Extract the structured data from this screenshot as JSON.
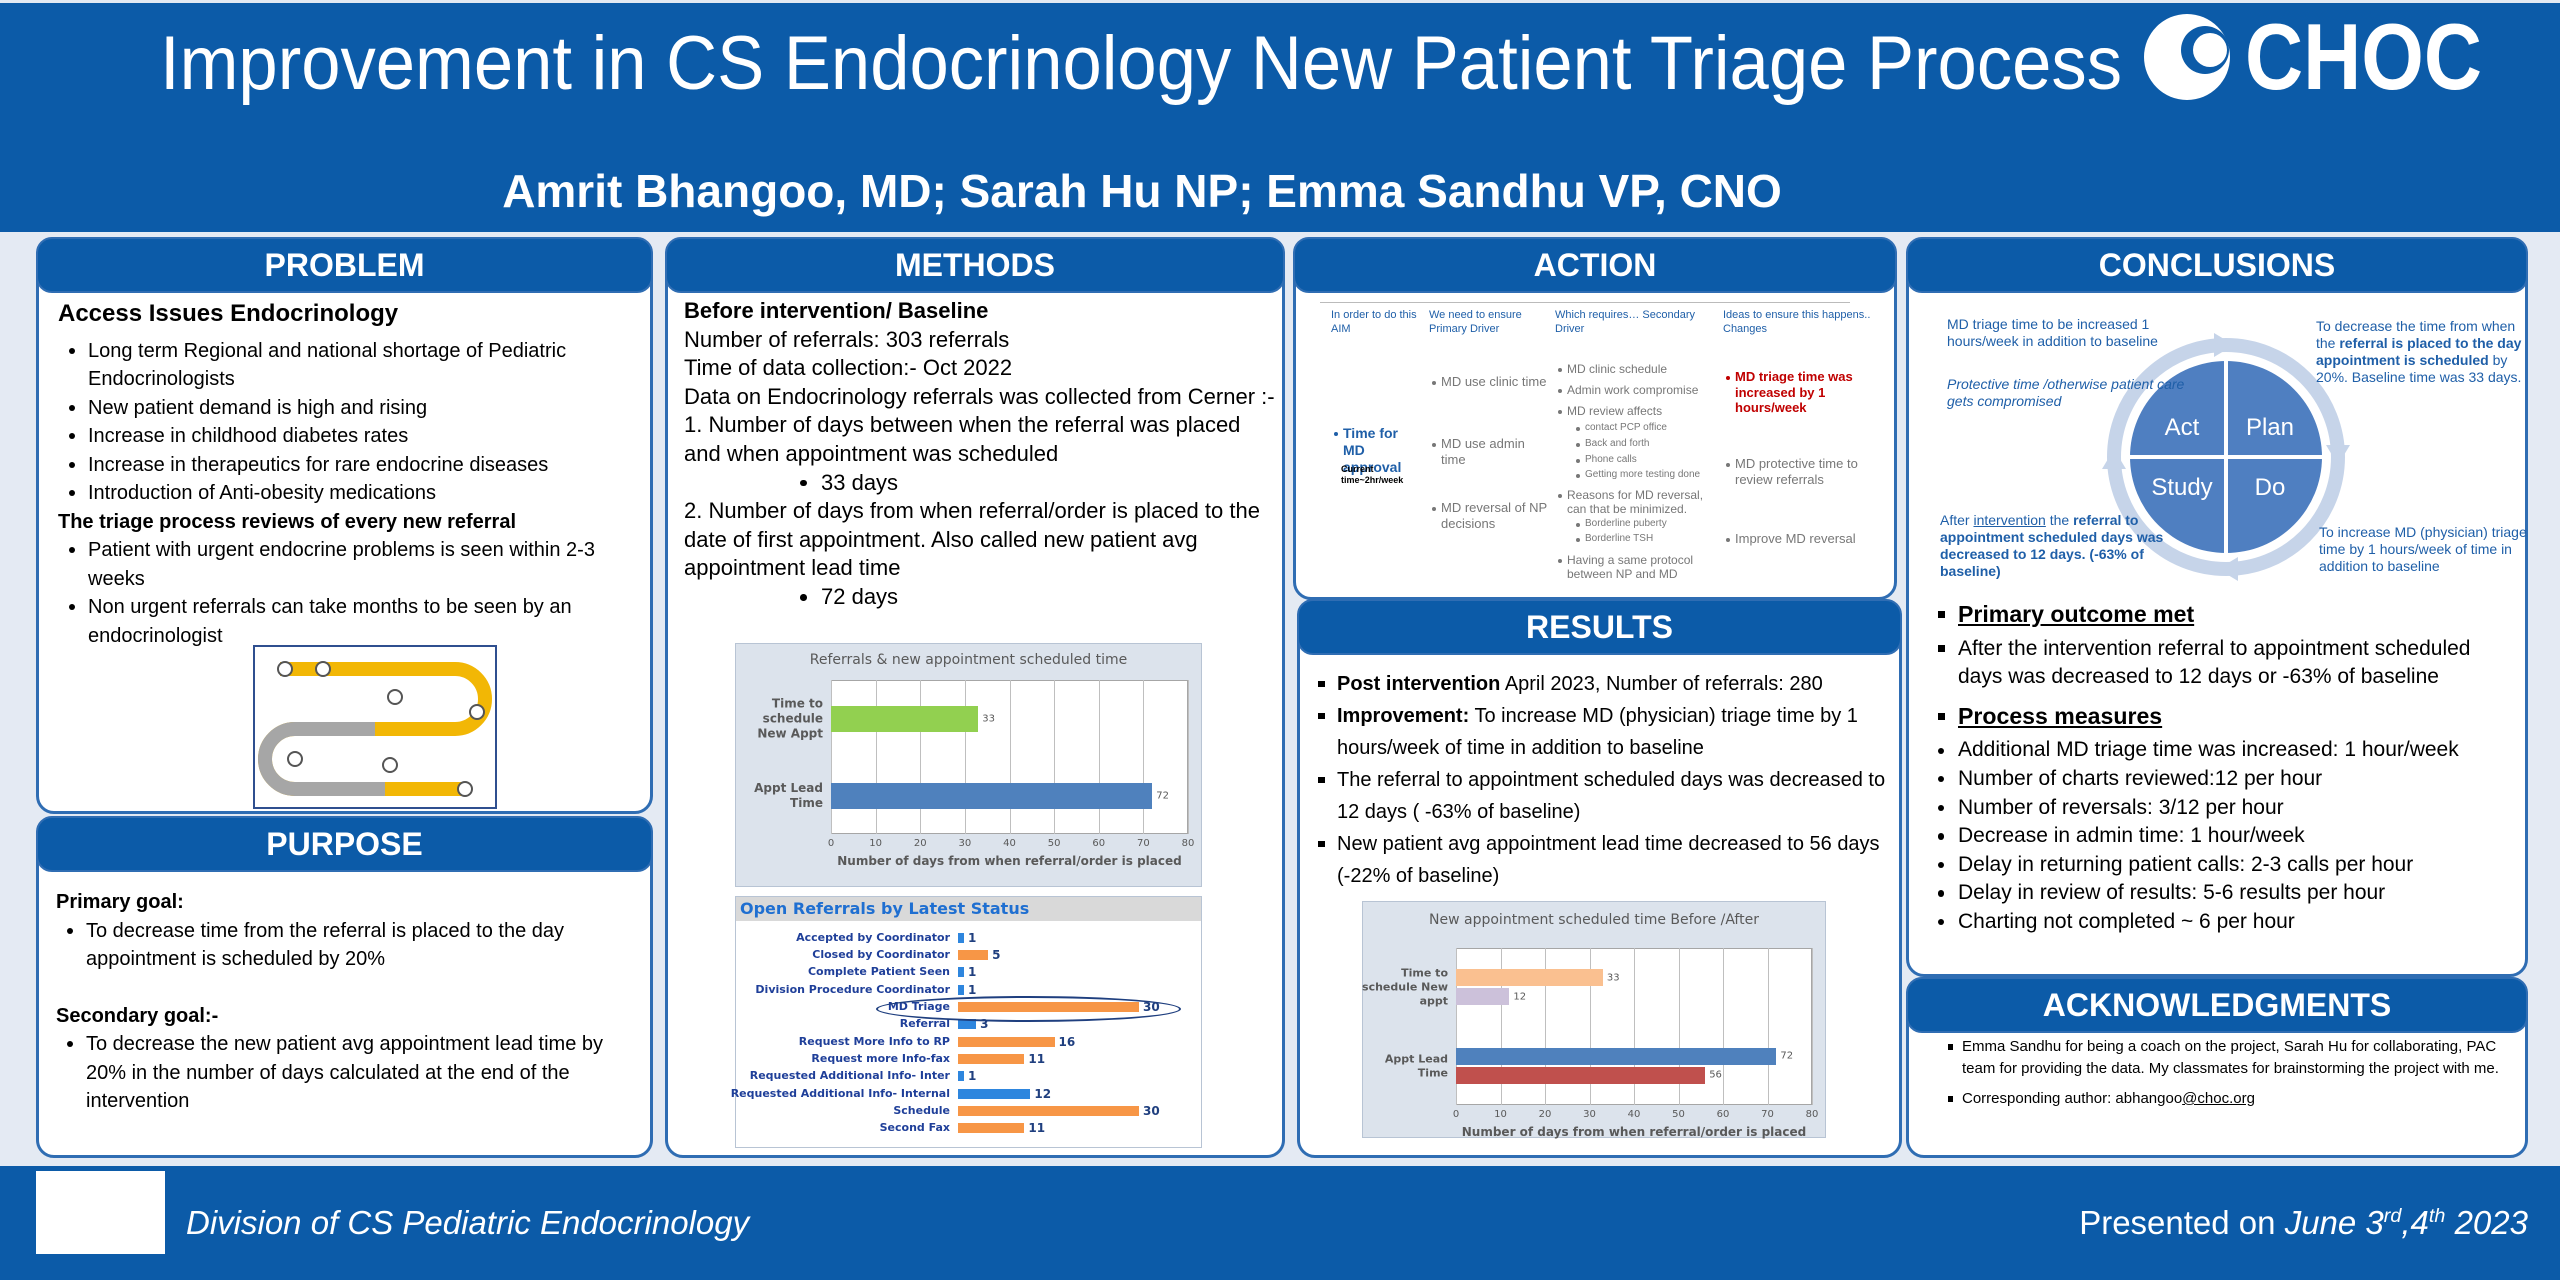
{
  "header": {
    "title": "Improvement in CS Endocrinology New Patient Triage Process",
    "authors": "Amrit Bhangoo, MD; Sarah Hu NP; Emma Sandhu VP, CNO",
    "logo": "CHOC"
  },
  "problem": {
    "heading": "PROBLEM",
    "items": [
      {
        "kind": "subheading",
        "text": "Access Issues Endocrinology"
      },
      {
        "kind": "bullet",
        "text": "Long term Regional and national shortage of Pediatric Endocrinologists"
      },
      {
        "kind": "bullet",
        "text": "New patient demand is high and rising"
      },
      {
        "kind": "bullet",
        "text": "Increase in childhood diabetes rates"
      },
      {
        "kind": "bullet",
        "text": "Increase in therapeutics for rare endocrine diseases"
      },
      {
        "kind": "bullet",
        "text": "Introduction of Anti-obesity medications"
      },
      {
        "kind": "label",
        "text": "The triage process reviews of every new referral"
      },
      {
        "kind": "bullet",
        "text": "Patient with urgent endocrine problems is seen within 2-3 weeks"
      },
      {
        "kind": "bullet",
        "text": "Non urgent referrals can take months to be seen by an endocrinologist"
      }
    ]
  },
  "purpose": {
    "heading": "PURPOSE",
    "items": [
      {
        "kind": "label",
        "text": "Primary goal:"
      },
      {
        "kind": "bullet",
        "text": "To decrease time  from the referral is placed to the day appointment is scheduled by 20%"
      },
      {
        "kind": "label",
        "text": "Secondary goal:-"
      },
      {
        "kind": "bullet",
        "text": "To decrease  the new patient avg appointment lead time by  20% in the number of days calculated at the end of the intervention"
      }
    ]
  },
  "methods": {
    "heading": "METHODS",
    "items": [
      {
        "kind": "label",
        "text": "Before intervention/ Baseline"
      },
      {
        "kind": "para",
        "text": "Number of referrals: 303 referrals"
      },
      {
        "kind": "para",
        "text": "Time of data collection:- Oct 2022"
      },
      {
        "kind": "para",
        "text": "Data on Endocrinology referrals was collected from Cerner :-"
      },
      {
        "kind": "para",
        "text": "1. Number of days between when the referral was placed and when appointment was scheduled"
      },
      {
        "kind": "subbullet",
        "text": "33 days"
      },
      {
        "kind": "para",
        "text": "2. Number of days from when referral/order is placed to the date of first appointment. Also called new patient avg appointment lead time"
      },
      {
        "kind": "subbullet",
        "text": "72 days"
      }
    ],
    "charts": [
      {
        "type": "bar",
        "orientation": "horizontal",
        "title": "Referrals & new appointment scheduled time",
        "categories": [
          "Time to schedule New Appt",
          "Appt Lead Time"
        ],
        "values": [
          33,
          72
        ],
        "colors": [
          "#92d050",
          "#4f81bd"
        ],
        "xlim": [
          0,
          80
        ],
        "xticks": [
          0,
          10,
          20,
          30,
          40,
          50,
          60,
          70,
          80
        ],
        "grid": true,
        "x_label": "Number of days from when referral/order is placed"
      },
      {
        "type": "bar",
        "orientation": "horizontal",
        "title": "Open Referrals by Latest Status",
        "categories": [
          "Accepted by Coordinator",
          "Closed by Coordinator",
          "Complete Patient Seen",
          "Division Procedure Coordinator",
          "MD Triage",
          "Referral",
          "Request More Info to RP",
          "Request more Info-fax",
          "Requested Additional Info- Inter",
          "Requested Additional Info- Internal",
          "Schedule",
          "Second Fax"
        ],
        "values": [
          1,
          5,
          1,
          1,
          30,
          3,
          16,
          11,
          1,
          12,
          30,
          11
        ],
        "colors": [
          "#2e86de",
          "#f79646",
          "#2e86de",
          "#2e86de",
          "#f79646",
          "#2e86de",
          "#f79646",
          "#f79646",
          "#2e86de",
          "#2e86de",
          "#f79646",
          "#f79646"
        ]
      }
    ]
  },
  "action": {
    "heading": "ACTION",
    "columns": [
      {
        "header": "In order to do this AIM",
        "items": [
          {
            "t": "Time for MD approval",
            "kind": "main"
          },
          {
            "t": "Current time~2hr/week",
            "kind": "note"
          }
        ]
      },
      {
        "header": "We need to ensure Primary Driver",
        "items": [
          {
            "t": "MD use clinic time"
          },
          {
            "t": "MD use admin time"
          },
          {
            "t": "MD reversal of NP decisions"
          }
        ]
      },
      {
        "header": "Which requires… Secondary Driver",
        "items": [
          {
            "t": "MD clinic schedule"
          },
          {
            "t": "Admin work compromise"
          },
          {
            "t": "MD review affects"
          },
          {
            "t": "contact PCP office",
            "level": 2
          },
          {
            "t": "Back and forth",
            "level": 2
          },
          {
            "t": "Phone calls",
            "level": 2
          },
          {
            "t": "Getting more testing done",
            "level": 2
          },
          {
            "t": "Reasons for MD reversal, can that be minimized."
          },
          {
            "t": "Borderline puberty",
            "level": 2
          },
          {
            "t": "Borderline TSH",
            "level": 2
          },
          {
            "t": "Having a same protocol between NP and MD"
          }
        ]
      },
      {
        "header": "Ideas to ensure this happens.. Changes",
        "items": [
          {
            "t": "MD triage time was increased by 1 hours/week",
            "highlight": true
          },
          {
            "t": "MD protective time to review referrals"
          },
          {
            "t": "Improve MD reversal"
          }
        ]
      }
    ]
  },
  "results": {
    "heading": "RESULTS",
    "items": [
      {
        "kind": "square",
        "text": [
          {
            "t": "Post intervention",
            "b": true
          },
          {
            "t": " April 2023, Number of  referrals: 280"
          }
        ]
      },
      {
        "kind": "square",
        "text": [
          {
            "t": "Improvement:",
            "b": true
          },
          {
            "t": " To increase MD (physician) triage time by 1 hours/week of time in addition to baseline"
          }
        ]
      },
      {
        "kind": "square",
        "text": "The referral to appointment scheduled days was decreased  to 12 days ( -63% of baseline)"
      },
      {
        "kind": "square",
        "text": "New patient avg appointment lead time  decreased to 56 days (-22% of baseline)"
      }
    ],
    "chart": {
      "type": "bar",
      "orientation": "horizontal",
      "title": "New appointment scheduled time Before /After",
      "categories": [
        "Time to schedule New appt",
        "Appt Lead Time"
      ],
      "series": [
        {
          "values": [
            33,
            72
          ],
          "colors": [
            "#fac090",
            "#4f81bd"
          ]
        },
        {
          "values": [
            12,
            56
          ],
          "colors": [
            "#ccc1da",
            "#c0504d"
          ]
        }
      ],
      "xlim": [
        0,
        80
      ],
      "xticks": [
        0,
        10,
        20,
        30,
        40,
        50,
        60,
        70,
        80
      ],
      "grid": true,
      "x_label": "Number of days from when referral/order is placed"
    }
  },
  "conclusions": {
    "heading": "CONCLUSIONS",
    "cycle": [
      "Act",
      "Plan",
      "Study",
      "Do"
    ],
    "notes": [
      [
        {
          "t": "MD triage time to be increased 1 hours/week in addition to baseline"
        }
      ],
      [
        {
          "t": "Protective time /otherwise patient care gets compromised",
          "i": true
        }
      ],
      [
        {
          "t": "To decrease the time from when the "
        },
        {
          "t": "referral is placed to the day appointment is scheduled",
          "b": true
        },
        {
          "t": " by 20%. Baseline time was 33 days."
        }
      ],
      [
        {
          "t": "After "
        },
        {
          "t": "intervention",
          "u": true
        },
        {
          "t": " the "
        },
        {
          "t": "referral to appointment scheduled days was decreased  to 12 days. (-63% of baseline)",
          "b": true
        }
      ],
      [
        {
          "t": "To increase MD (physician) triage time by 1 hours/week of time in addition to baseline"
        }
      ]
    ],
    "items": [
      {
        "kind": "sq-heading",
        "text": "Primary outcome met"
      },
      {
        "kind": "square",
        "text": "After the intervention referral to appointment scheduled days was      decreased  to 12 days or -63% of baseline"
      },
      {
        "kind": "sq-heading",
        "text": "Process measures"
      },
      {
        "kind": "bullet",
        "text": "Additional MD triage time was increased: 1 hour/week"
      },
      {
        "kind": "bullet",
        "text": "Number of charts reviewed:12 per hour"
      },
      {
        "kind": "bullet",
        "text": "Number of reversals: 3/12 per hour"
      },
      {
        "kind": "bullet",
        "text": "Decrease in admin time: 1 hour/week"
      },
      {
        "kind": "bullet",
        "text": "Delay in returning patient calls: 2-3 calls per hour"
      },
      {
        "kind": "bullet",
        "text": "Delay in review of results: 5-6 results per hour"
      },
      {
        "kind": "bullet",
        "text": "Charting not completed ~ 6 per hour"
      }
    ]
  },
  "acknowledgments": {
    "heading": "ACKNOWLEDGMENTS",
    "items": [
      {
        "kind": "square",
        "text": "Emma Sandhu for being a coach on the project, Sarah Hu for collaborating, PAC team for providing the data. My classmates for brainstorming the project with me."
      },
      {
        "kind": "square",
        "text": [
          {
            "t": "Corresponding author: abhangoo"
          },
          {
            "t": "@choc.org",
            "u": true
          }
        ]
      }
    ]
  },
  "footer": {
    "division": "Division of CS Pediatric Endocrinology",
    "presented": [
      {
        "t": "Presented on "
      },
      {
        "t": "June 3",
        "i": true
      },
      {
        "t": "rd",
        "i": true,
        "sup": true
      },
      {
        "t": ",4",
        "i": true
      },
      {
        "t": "th",
        "i": true,
        "sup": true
      },
      {
        "t": " 2023",
        "i": true
      }
    ]
  }
}
